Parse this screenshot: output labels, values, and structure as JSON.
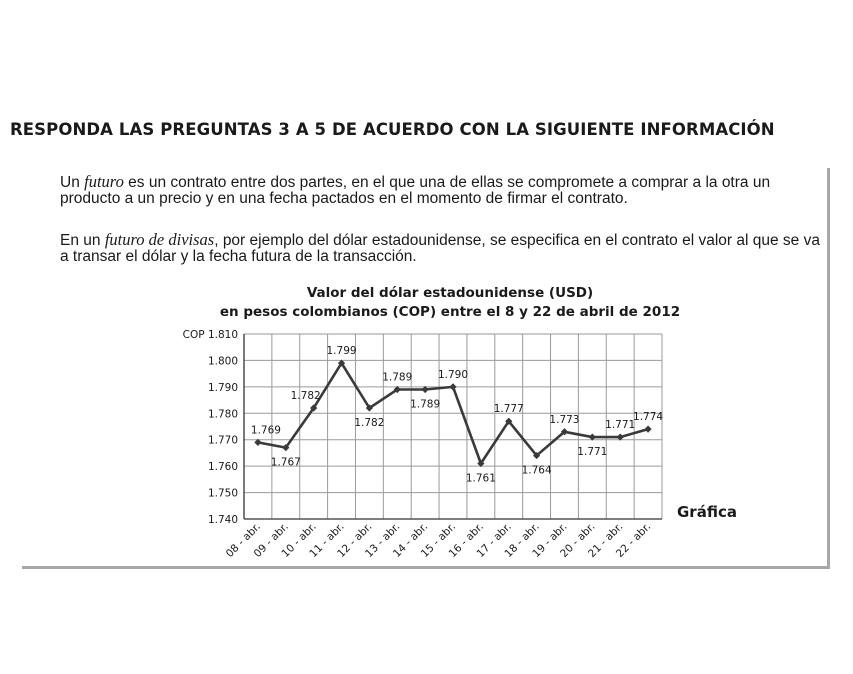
{
  "heading": "RESPONDA LAS PREGUNTAS 3 A 5 DE ACUERDO CON LA SIGUIENTE INFORMACIÓN",
  "paragraphs": {
    "p1": {
      "pre": "Un ",
      "em": "futuro",
      "post": " es un contrato entre dos partes, en el que una de ellas se compromete a comprar a la otra un producto a un precio y en una fecha pactados en el momento de firmar el contrato."
    },
    "p2": {
      "pre": "En un ",
      "em": "futuro de divisas",
      "post": ", por ejemplo del dólar estadounidense, se especifica en el contrato el valor al que se va a transar el dólar y la fecha futura de la transacción."
    }
  },
  "chart_data": {
    "type": "line",
    "title": "Valor del dólar estadounidense (USD)",
    "subtitle": "en pesos colombianos (COP) entre el 8 y 22 de abril de 2012",
    "figure_label": "Gráfica",
    "ylabel": "",
    "xlabel": "",
    "ylim": [
      1740,
      1810
    ],
    "yticks": [
      1740,
      1750,
      1760,
      1770,
      1780,
      1790,
      1800,
      1810
    ],
    "ytick_labels": [
      "1.740",
      "1.750",
      "1.760",
      "1.770",
      "1.780",
      "1.790",
      "1.800",
      "COP 1.810"
    ],
    "categories": [
      "08 - abr.",
      "09 - abr.",
      "10 - abr.",
      "11 - abr.",
      "12 - abr.",
      "13 - abr.",
      "14 - abr.",
      "15 - abr.",
      "16 - abr.",
      "17 - abr.",
      "18 - abr.",
      "19 - abr.",
      "20 - abr.",
      "21 - abr.",
      "22 - abr."
    ],
    "values": [
      1769,
      1767,
      1782,
      1799,
      1782,
      1789,
      1789,
      1790,
      1761,
      1777,
      1764,
      1773,
      1771,
      1771,
      1774
    ],
    "data_labels": [
      "1.769",
      "1.767",
      "1.782",
      "1.799",
      "1.782",
      "1.789",
      "1.789",
      "1.790",
      "1.761",
      "1.777",
      "1.764",
      "1.773",
      "1.771",
      "1.771",
      "1.774"
    ],
    "grid": true,
    "line_color": "#3a3a3a",
    "grid_color": "#9a9a9a"
  }
}
